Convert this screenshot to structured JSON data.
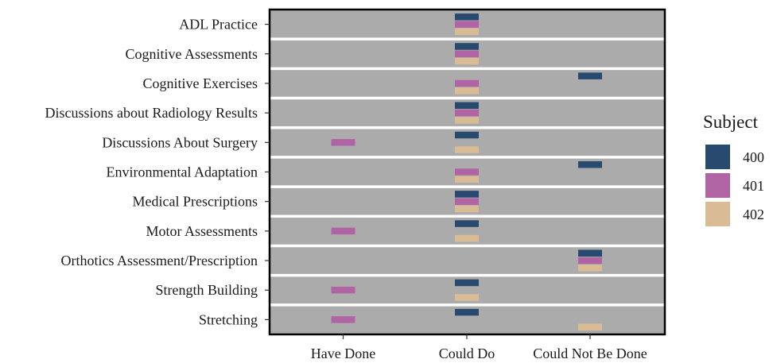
{
  "chart_data": {
    "type": "heatmap",
    "title": "",
    "xlabel": "",
    "ylabel": "",
    "categories_x": [
      "Have Done",
      "Could Do",
      "Could Not Be Done"
    ],
    "categories_y": [
      "ADL Practice",
      "Cognitive Assessments",
      "Cognitive Exercises",
      "Discussions about Radiology Results",
      "Discussions About Surgery",
      "Environmental Adaptation",
      "Medical Prescriptions",
      "Motor Assessments",
      "Orthotics Assessment/Prescription",
      "Strength Building",
      "Stretching"
    ],
    "legend": {
      "title": "Subject",
      "placement": "right",
      "entries": [
        {
          "label": "400",
          "color": "#284A6E"
        },
        {
          "label": "401",
          "color": "#B064A4"
        },
        {
          "label": "402",
          "color": "#D9BC96"
        }
      ]
    },
    "series": [
      {
        "name": "400",
        "color": "#284A6E",
        "values": [
          "Could Do",
          "Could Do",
          "Could Not Be Done",
          "Could Do",
          "Could Do",
          "Could Not Be Done",
          "Could Do",
          "Could Do",
          "Could Not Be Done",
          "Could Do",
          "Could Do"
        ]
      },
      {
        "name": "401",
        "color": "#B064A4",
        "values": [
          "Could Do",
          "Could Do",
          "Could Do",
          "Could Do",
          "Have Done",
          "Could Do",
          "Could Do",
          "Have Done",
          "Could Not Be Done",
          "Have Done",
          "Have Done"
        ]
      },
      {
        "name": "402",
        "color": "#D9BC96",
        "values": [
          "Could Do",
          "Could Do",
          "Could Do",
          "Could Do",
          "Could Do",
          "Could Do",
          "Could Do",
          "Could Do",
          "Could Not Be Done",
          "Could Do",
          "Could Not Be Done"
        ]
      }
    ],
    "style": {
      "panel_background": "#ABABAB",
      "row_separator": "#ffffff",
      "panel_border": "#000000",
      "grid": false
    }
  }
}
